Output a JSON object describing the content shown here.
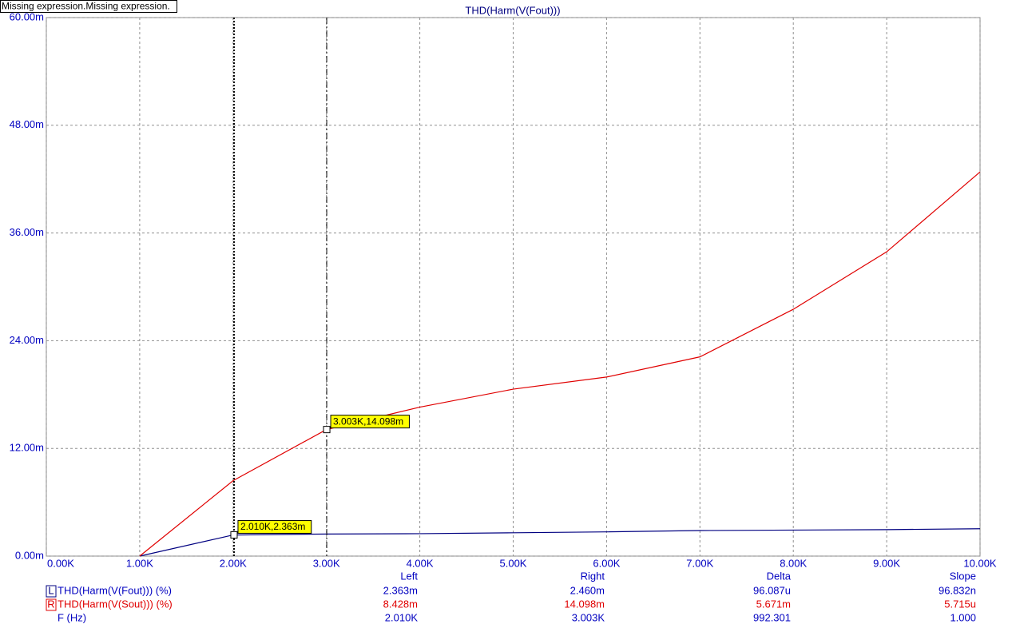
{
  "status_text": "Missing expression.Missing expression.",
  "chart_data": {
    "type": "line",
    "title": "THD(Harm(V(Fout)))",
    "x": [
      1000,
      2000,
      3000,
      4000,
      5000,
      6000,
      7000,
      8000,
      9000,
      10000
    ],
    "series": [
      {
        "name": "THD(Harm(V(Fout))) (%)",
        "color": "#000080",
        "values": [
          0,
          0.00235,
          0.00246,
          0.0025,
          0.0026,
          0.0027,
          0.00285,
          0.0029,
          0.00295,
          0.00305
        ]
      },
      {
        "name": "THD(Harm(V(Sout))) (%)",
        "color": "#e00000",
        "values": [
          0,
          0.0084,
          0.0141,
          0.0166,
          0.0186,
          0.01995,
          0.0222,
          0.0275,
          0.0339,
          0.0428
        ]
      }
    ],
    "xlim": [
      0,
      10000
    ],
    "xticks": [
      {
        "value": 0,
        "label": "0.00K"
      },
      {
        "value": 1000,
        "label": "1.00K"
      },
      {
        "value": 2000,
        "label": "2.00K"
      },
      {
        "value": 3000,
        "label": "3.00K"
      },
      {
        "value": 4000,
        "label": "4.00K"
      },
      {
        "value": 5000,
        "label": "5.00K"
      },
      {
        "value": 6000,
        "label": "6.00K"
      },
      {
        "value": 7000,
        "label": "7.00K"
      },
      {
        "value": 8000,
        "label": "8.00K"
      },
      {
        "value": 9000,
        "label": "9.00K"
      },
      {
        "value": 10000,
        "label": "10.00K"
      }
    ],
    "ylim": [
      0,
      0.06
    ],
    "yticks": [
      {
        "value": 0,
        "label": "0.00m"
      },
      {
        "value": 0.012,
        "label": "12.00m"
      },
      {
        "value": 0.024,
        "label": "24.00m"
      },
      {
        "value": 0.036,
        "label": "36.00m"
      },
      {
        "value": 0.048,
        "label": "48.00m"
      },
      {
        "value": 0.06,
        "label": "60.00m"
      }
    ],
    "grid": true,
    "cursors": [
      {
        "x": 2010,
        "y": 0.002363,
        "label": "2.010K,2.363m",
        "line_style": "dotted"
      },
      {
        "x": 3003,
        "y": 0.014098,
        "label": "3.003K,14.098m",
        "line_style": "dashdot"
      }
    ]
  },
  "cursor_table": {
    "columns": [
      "Left",
      "Right",
      "Delta",
      "Slope"
    ],
    "rows": [
      {
        "marker": "L",
        "values": [
          "2.363m",
          "2.460m",
          "96.087u",
          "96.832n"
        ]
      },
      {
        "marker": "R",
        "values": [
          "8.428m",
          "14.098m",
          "5.671m",
          "5.715u"
        ]
      },
      {
        "name": "F (Hz)",
        "values": [
          "2.010K",
          "3.003K",
          "992.301",
          "1.000"
        ]
      }
    ]
  }
}
